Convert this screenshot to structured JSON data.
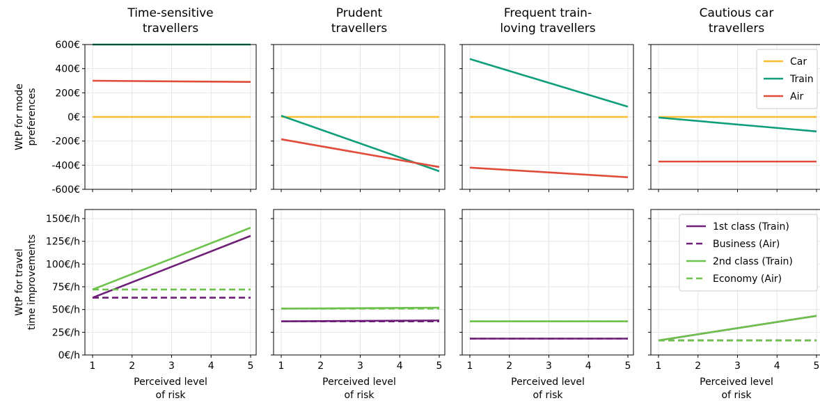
{
  "columns": [
    {
      "title_lines": [
        "Time-sensitive",
        "travellers"
      ]
    },
    {
      "title_lines": [
        "Prudent",
        "travellers"
      ]
    },
    {
      "title_lines": [
        "Frequent train-",
        "loving travellers"
      ]
    },
    {
      "title_lines": [
        "Cautious car",
        "travellers"
      ]
    }
  ],
  "row_labels": [
    [
      "WtP for mode",
      "preferences"
    ],
    [
      "WtP for travel",
      "time improvements"
    ]
  ],
  "xlabel_lines": [
    "Perceived level",
    "of risk"
  ],
  "colors": {
    "car": "#fbbc2e",
    "train": "#0e9e7a",
    "air": "#e04b3a",
    "purple": "#6e1f78",
    "green": "#6cc24a"
  },
  "chart_data": [
    {
      "type": "line",
      "panel": "mode-preferences",
      "x": [
        1,
        5
      ],
      "xticks": [
        1,
        2,
        3,
        4,
        5
      ],
      "ylim": [
        -600,
        600
      ],
      "yticks": [
        -600,
        -400,
        -200,
        0,
        200,
        400,
        600
      ],
      "ytick_labels": [
        "-600€",
        "-400€",
        "-200€",
        "0€",
        "200€",
        "400€",
        "600€"
      ],
      "legend": {
        "panel": 3,
        "location": "upper-right"
      },
      "series": [
        {
          "name": "Car",
          "color": "car",
          "dash": false,
          "values": [
            [
              0,
              0
            ],
            [
              0,
              0
            ],
            [
              0,
              0
            ],
            [
              0,
              0
            ]
          ]
        },
        {
          "name": "Train",
          "color": "train",
          "dash": false,
          "values": [
            [
              600,
              600
            ],
            [
              10,
              -450
            ],
            [
              480,
              85
            ],
            [
              -5,
              -120
            ]
          ]
        },
        {
          "name": "Air",
          "color": "air",
          "dash": false,
          "values": [
            [
              300,
              290
            ],
            [
              -185,
              -415
            ],
            [
              -420,
              -500
            ],
            [
              -370,
              -370
            ]
          ]
        }
      ]
    },
    {
      "type": "line",
      "panel": "time-improvements",
      "x": [
        1,
        5
      ],
      "xticks": [
        1,
        2,
        3,
        4,
        5
      ],
      "ylim": [
        0,
        160
      ],
      "yticks": [
        0,
        25,
        50,
        75,
        100,
        125,
        150
      ],
      "ytick_labels": [
        "0€/h",
        "25€/h",
        "50€/h",
        "75€/h",
        "100€/h",
        "125€/h",
        "150€/h"
      ],
      "legend": {
        "panel": 3,
        "location": "upper-right"
      },
      "series": [
        {
          "name": "1st class (Train)",
          "color": "purple",
          "dash": false,
          "values": [
            [
              63,
              131
            ],
            [
              37,
              38
            ],
            [
              18,
              18
            ],
            [
              16,
              43
            ]
          ]
        },
        {
          "name": "Business (Air)",
          "color": "purple",
          "dash": true,
          "values": [
            [
              63,
              63
            ],
            [
              37,
              37
            ],
            [
              18,
              18
            ],
            [
              16,
              16
            ]
          ]
        },
        {
          "name": "2nd class (Train)",
          "color": "green",
          "dash": false,
          "values": [
            [
              72,
              140
            ],
            [
              51,
              52
            ],
            [
              37,
              37
            ],
            [
              16,
              43
            ]
          ]
        },
        {
          "name": "Economy (Air)",
          "color": "green",
          "dash": true,
          "values": [
            [
              72,
              72
            ],
            [
              51,
              51
            ],
            [
              37,
              37
            ],
            [
              16,
              16
            ]
          ]
        }
      ]
    }
  ]
}
